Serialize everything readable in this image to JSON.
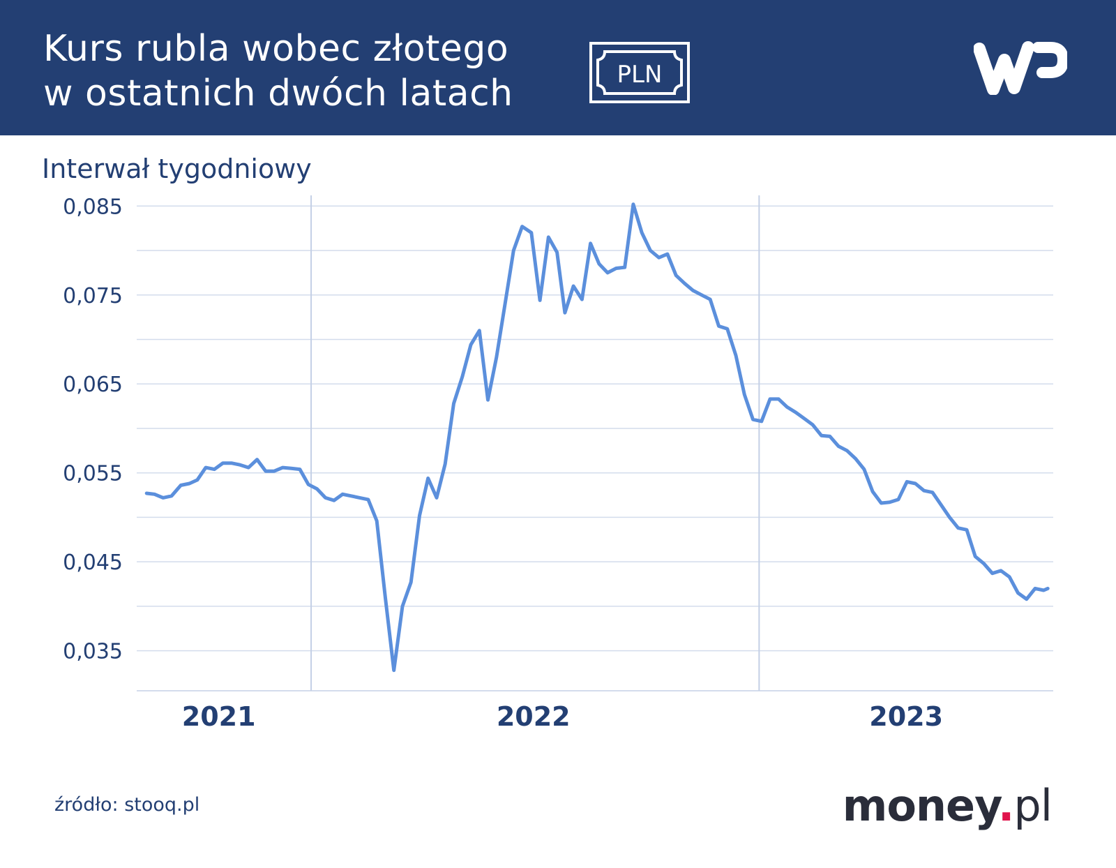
{
  "header": {
    "title_line1": "Kurs rubla wobec złotego",
    "title_line2": "w ostatnich dwóch latach",
    "badge_text": "PLN",
    "logo": "wp-logo",
    "colors": {
      "background": "#233f73",
      "text": "#ffffff"
    }
  },
  "subtitle": "Interwał tygodniowy",
  "chart_data": {
    "type": "line",
    "title": "Kurs rubla wobec złotego w ostatnich dwóch latach",
    "subtitle": "Interwał tygodniowy",
    "xlabel": "",
    "ylabel": "",
    "x_range": [
      2020.74,
      2023.42
    ],
    "ylim": [
      0.0305,
      0.0862
    ],
    "y_ticks": [
      0.035,
      0.045,
      0.055,
      0.065,
      0.075,
      0.085
    ],
    "y_tick_labels": [
      "0,035",
      "0,045",
      "0,055",
      "0,065",
      "0,075",
      "0,085"
    ],
    "x_tick_labels": [
      {
        "label": "2021",
        "x": 2020.98
      },
      {
        "label": "2022",
        "x": 2021.9
      },
      {
        "label": "2023",
        "x": 2022.99
      }
    ],
    "year_dividers": [
      2021.25,
      2022.56
    ],
    "grid": true,
    "legend": "none",
    "series": [
      {
        "color": "#5b8fdc",
        "x": [
          2020.769,
          2020.792,
          2020.817,
          2020.842,
          2020.869,
          2020.894,
          2020.917,
          2020.942,
          2020.967,
          2020.992,
          2021.017,
          2021.042,
          2021.067,
          2021.092,
          2021.117,
          2021.142,
          2021.167,
          2021.192,
          2021.217,
          2021.242,
          2021.267,
          2021.292,
          2021.317,
          2021.342,
          2021.367,
          2021.392,
          2021.417,
          2021.442,
          2021.467,
          2021.492,
          2021.517,
          2021.542,
          2021.567,
          2021.592,
          2021.617,
          2021.642,
          2021.667,
          2021.692,
          2021.717,
          2021.742,
          2021.767,
          2021.792,
          2021.817,
          2021.842,
          2021.867,
          2021.894,
          2021.919,
          2021.944,
          2021.969,
          2021.992,
          2022.017,
          2022.042,
          2022.067,
          2022.092,
          2022.117,
          2022.142,
          2022.167,
          2022.192,
          2022.217,
          2022.242,
          2022.267,
          2022.292,
          2022.317,
          2022.342,
          2022.367,
          2022.392,
          2022.417,
          2022.442,
          2022.467,
          2022.492,
          2022.517,
          2022.542,
          2022.567,
          2022.592,
          2022.617,
          2022.642,
          2022.667,
          2022.692,
          2022.717,
          2022.742,
          2022.767,
          2022.792,
          2022.817,
          2022.842,
          2022.867,
          2022.892,
          2022.917,
          2022.942,
          2022.967,
          2022.992,
          2023.017,
          2023.042,
          2023.067,
          2023.092,
          2023.117,
          2023.142,
          2023.167,
          2023.192,
          2023.217,
          2023.242,
          2023.267,
          2023.292,
          2023.317,
          2023.342,
          2023.367,
          2023.392,
          2023.404
        ],
        "y": [
          0.0527,
          0.0526,
          0.0522,
          0.0524,
          0.0536,
          0.0538,
          0.0542,
          0.0556,
          0.0554,
          0.0561,
          0.0561,
          0.0559,
          0.0556,
          0.0565,
          0.0552,
          0.0552,
          0.0556,
          0.0555,
          0.0554,
          0.0537,
          0.0532,
          0.0522,
          0.0519,
          0.0526,
          0.0524,
          0.0522,
          0.052,
          0.0496,
          0.041,
          0.0328,
          0.04,
          0.0427,
          0.0502,
          0.0544,
          0.0522,
          0.056,
          0.0628,
          0.0658,
          0.0694,
          0.071,
          0.0632,
          0.068,
          0.074,
          0.08,
          0.0827,
          0.082,
          0.0744,
          0.0815,
          0.0798,
          0.073,
          0.076,
          0.0745,
          0.0808,
          0.0785,
          0.0775,
          0.078,
          0.0781,
          0.0852,
          0.082,
          0.08,
          0.0792,
          0.0796,
          0.0772,
          0.0763,
          0.0755,
          0.075,
          0.0745,
          0.0715,
          0.0712,
          0.0682,
          0.0638,
          0.061,
          0.0608,
          0.0633,
          0.0633,
          0.0624,
          0.0618,
          0.0611,
          0.0604,
          0.0592,
          0.0591,
          0.058,
          0.0575,
          0.0566,
          0.0554,
          0.0529,
          0.0516,
          0.0517,
          0.052,
          0.054,
          0.0538,
          0.053,
          0.0528,
          0.0514,
          0.05,
          0.0488,
          0.0486,
          0.0456,
          0.0448,
          0.0437,
          0.044,
          0.0433,
          0.0415,
          0.0408,
          0.042,
          0.0418,
          0.042
        ]
      }
    ]
  },
  "footer": {
    "source": "źródło: stooq.pl",
    "brand_main": "money",
    "brand_dot": ".",
    "brand_tld": "pl",
    "brand_dot_color": "#e0144c"
  }
}
